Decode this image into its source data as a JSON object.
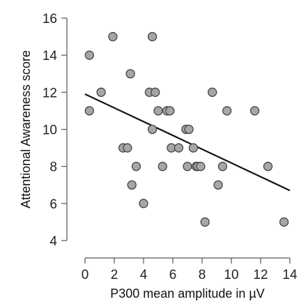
{
  "chart_data": {
    "type": "scatter",
    "xlabel": "P300 mean amplitude in µV",
    "ylabel": "Attentional Awareness score",
    "xlim": [
      0,
      14
    ],
    "ylim": [
      4,
      16
    ],
    "xticks": [
      0,
      2,
      4,
      6,
      8,
      10,
      12,
      14
    ],
    "yticks": [
      4,
      6,
      8,
      10,
      12,
      14,
      16
    ],
    "xtick_labels": [
      "0",
      "2",
      "4",
      "6",
      "8",
      "10",
      "12",
      "14"
    ],
    "ytick_labels": [
      "4",
      "6",
      "8",
      "10",
      "12",
      "14",
      "16"
    ],
    "grid": false,
    "series": [
      {
        "points": [
          {
            "x": 0.3,
            "y": 14
          },
          {
            "x": 0.3,
            "y": 11
          },
          {
            "x": 1.1,
            "y": 12
          },
          {
            "x": 1.9,
            "y": 15
          },
          {
            "x": 2.6,
            "y": 9
          },
          {
            "x": 2.9,
            "y": 9
          },
          {
            "x": 3.1,
            "y": 13
          },
          {
            "x": 3.2,
            "y": 7
          },
          {
            "x": 3.5,
            "y": 8
          },
          {
            "x": 4.0,
            "y": 6
          },
          {
            "x": 4.4,
            "y": 12
          },
          {
            "x": 4.6,
            "y": 15
          },
          {
            "x": 4.6,
            "y": 10
          },
          {
            "x": 4.8,
            "y": 12
          },
          {
            "x": 5.0,
            "y": 11
          },
          {
            "x": 5.3,
            "y": 8
          },
          {
            "x": 5.6,
            "y": 11
          },
          {
            "x": 5.8,
            "y": 11
          },
          {
            "x": 5.9,
            "y": 9
          },
          {
            "x": 6.4,
            "y": 9
          },
          {
            "x": 6.9,
            "y": 10
          },
          {
            "x": 7.0,
            "y": 8
          },
          {
            "x": 7.1,
            "y": 10
          },
          {
            "x": 7.4,
            "y": 9
          },
          {
            "x": 7.6,
            "y": 8
          },
          {
            "x": 7.7,
            "y": 8
          },
          {
            "x": 7.9,
            "y": 8
          },
          {
            "x": 8.2,
            "y": 5
          },
          {
            "x": 8.7,
            "y": 12
          },
          {
            "x": 9.1,
            "y": 7
          },
          {
            "x": 9.4,
            "y": 8
          },
          {
            "x": 9.7,
            "y": 11
          },
          {
            "x": 11.6,
            "y": 11
          },
          {
            "x": 12.5,
            "y": 8
          },
          {
            "x": 13.6,
            "y": 5
          }
        ]
      }
    ],
    "fit_line": {
      "x": [
        0,
        14
      ],
      "y": [
        11.9,
        6.7
      ]
    },
    "colors": {
      "point_fill": "#a6a6a6",
      "point_stroke": "#444444",
      "line": "#111111"
    }
  }
}
